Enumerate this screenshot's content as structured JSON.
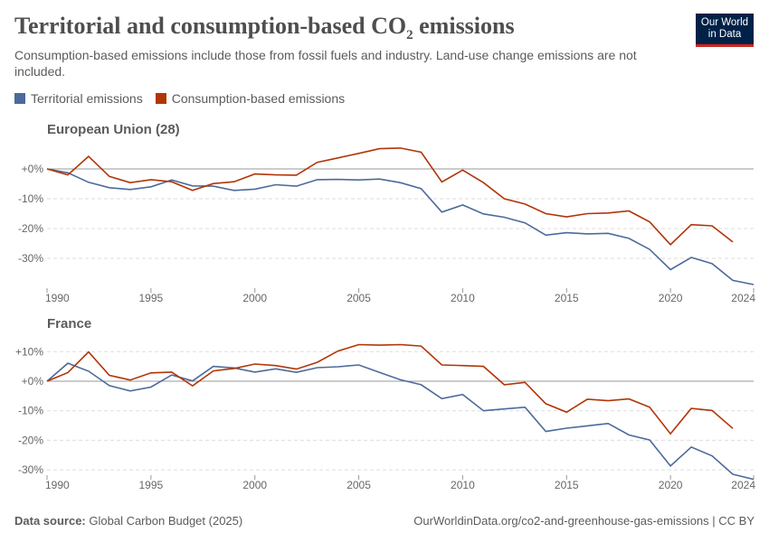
{
  "title": "Territorial and consumption-based CO",
  "title_sub": "2",
  "title_end": " emissions",
  "subtitle": "Consumption-based emissions include those from fossil fuels and industry. Land-use change emissions are not included.",
  "logo": {
    "line1": "Our World",
    "line2": "in Data"
  },
  "footer": {
    "source_label": "Data source:",
    "source": "Global Carbon Budget (2025)",
    "right": "OurWorldinData.org/co2-and-greenhouse-gas-emissions | CC BY"
  },
  "chart_data": [
    {
      "type": "line",
      "title": "European Union (28)",
      "x_ticks": [
        "1990",
        "1995",
        "2000",
        "2005",
        "2010",
        "2015",
        "2020",
        "2024"
      ],
      "y_ticks": [
        "+0%",
        "-10%",
        "-20%",
        "-30%"
      ],
      "y_tick_values": [
        0,
        -10,
        -20,
        -30
      ],
      "ylim": [
        -39,
        7
      ],
      "xlim": [
        1990,
        2024
      ],
      "grid": "horizontal dashed",
      "legend": "top",
      "series": [
        {
          "name": "Territorial emissions",
          "color": "#4c6a9c",
          "start_year": 1990,
          "values": [
            0,
            -1.3,
            -4.5,
            -6.3,
            -6.9,
            -6,
            -3.7,
            -5.7,
            -5.8,
            -7.2,
            -6.8,
            -5.3,
            -5.8,
            -3.6,
            -3.5,
            -3.7,
            -3.4,
            -4.6,
            -6.6,
            -14.5,
            -12.1,
            -15.1,
            -16.2,
            -18.1,
            -22.2,
            -21.4,
            -21.8,
            -21.6,
            -23.3,
            -27,
            -33.8,
            -29.7,
            -31.8,
            -37.4,
            -38.8
          ]
        },
        {
          "name": "Consumption-based emissions",
          "color": "#b13507",
          "start_year": 1990,
          "values": [
            0,
            -2,
            4.2,
            -2.5,
            -4.6,
            -3.6,
            -4.3,
            -7.2,
            -4.9,
            -4.3,
            -1.7,
            -2,
            -2.1,
            2.2,
            3.7,
            5.2,
            6.8,
            7,
            5.6,
            -4.4,
            -0.4,
            -4.6,
            -10,
            -11.8,
            -15,
            -16.1,
            -15,
            -14.8,
            -14.1,
            -17.8,
            -25.4,
            -18.7,
            -19.1,
            -24.5
          ]
        }
      ]
    },
    {
      "type": "line",
      "title": "France",
      "x_ticks": [
        "1990",
        "1995",
        "2000",
        "2005",
        "2010",
        "2015",
        "2020",
        "2024"
      ],
      "y_ticks": [
        "+10%",
        "+0%",
        "-10%",
        "-20%",
        "-30%"
      ],
      "y_tick_values": [
        10,
        0,
        -10,
        -20,
        -30
      ],
      "ylim": [
        -33,
        12.5
      ],
      "xlim": [
        1990,
        2024
      ],
      "grid": "horizontal dashed",
      "series": [
        {
          "name": "Territorial emissions",
          "color": "#4c6a9c",
          "start_year": 1990,
          "values": [
            0,
            6.1,
            3.4,
            -1.5,
            -3.3,
            -2,
            2.1,
            0.1,
            5,
            4.5,
            3.1,
            4.2,
            3,
            4.6,
            4.9,
            5.5,
            3,
            0.5,
            -1.2,
            -5.9,
            -4.5,
            -10,
            -9.4,
            -8.8,
            -17,
            -15.9,
            -15.1,
            -14.3,
            -18.2,
            -19.9,
            -28.7,
            -22.3,
            -25.3,
            -31.5,
            -33.2
          ]
        },
        {
          "name": "Consumption-based emissions",
          "color": "#b13507",
          "start_year": 1990,
          "values": [
            0,
            2.9,
            9.9,
            2,
            0.4,
            2.8,
            3.1,
            -1.6,
            3.5,
            4.3,
            5.8,
            5.3,
            4.1,
            6.4,
            10.2,
            12.4,
            12.2,
            12.4,
            11.9,
            5.5,
            5.3,
            5,
            -1.2,
            -0.4,
            -7.6,
            -10.5,
            -6.1,
            -6.6,
            -6,
            -8.8,
            -17.8,
            -9.2,
            -9.9,
            -16
          ]
        }
      ]
    }
  ]
}
